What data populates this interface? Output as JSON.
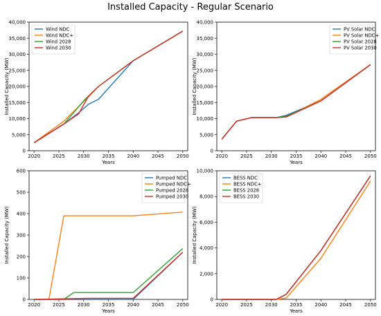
{
  "figure": {
    "title": "Installed Capacity - Regular Scenario"
  },
  "chart_data": [
    {
      "type": "line",
      "xlabel": "Years",
      "ylabel": "Installed Capacity (MW)",
      "xlim": [
        2019,
        2051
      ],
      "ylim": [
        0,
        40000
      ],
      "xticks": [
        2020,
        2025,
        2030,
        2035,
        2040,
        2045,
        2050
      ],
      "xtick_labels": [
        "2020",
        "2025",
        "2030",
        "2035",
        "2040",
        "2045",
        "2050"
      ],
      "yticks": [
        0,
        5000,
        10000,
        15000,
        20000,
        25000,
        30000,
        35000,
        40000
      ],
      "ytick_labels": [
        "0",
        "5,000",
        "10,000",
        "15,000",
        "20,000",
        "25,000",
        "30,000",
        "35,000",
        "40,000"
      ],
      "legend_position": "top-left",
      "series": [
        {
          "name": "Wind NDC",
          "color": "#1f77b4",
          "x": [
            2020,
            2026,
            2029,
            2031,
            2033,
            2040,
            2050
          ],
          "y": [
            2500,
            8300,
            11800,
            14500,
            16000,
            28000,
            37200
          ]
        },
        {
          "name": "Wind NDC+",
          "color": "#ff7f0e",
          "x": [
            2020,
            2026,
            2031,
            2033,
            2040,
            2050
          ],
          "y": [
            2500,
            9200,
            16800,
            20000,
            28000,
            37200
          ]
        },
        {
          "name": "Wind 2028",
          "color": "#2ca02c",
          "x": [
            2020,
            2026,
            2030,
            2031,
            2033,
            2040,
            2050
          ],
          "y": [
            2500,
            8300,
            15500,
            17000,
            20000,
            28000,
            37200
          ]
        },
        {
          "name": "Wind 2030",
          "color": "#d62728",
          "x": [
            2020,
            2026,
            2029,
            2031,
            2033,
            2040,
            2050
          ],
          "y": [
            2500,
            8300,
            11500,
            17000,
            20000,
            28000,
            37200
          ]
        }
      ]
    },
    {
      "type": "line",
      "xlabel": "Years",
      "ylabel": "Installed Capacity (MW)",
      "xlim": [
        2019,
        2051
      ],
      "ylim": [
        0,
        40000
      ],
      "xticks": [
        2020,
        2025,
        2030,
        2035,
        2040,
        2045,
        2050
      ],
      "xtick_labels": [
        "2020",
        "2025",
        "2030",
        "2035",
        "2040",
        "2045",
        "2050"
      ],
      "yticks": [
        0,
        5000,
        10000,
        15000,
        20000,
        25000,
        30000,
        35000,
        40000
      ],
      "ytick_labels": [
        "0",
        "5,000",
        "10,000",
        "15,000",
        "20,000",
        "25,000",
        "30,000",
        "35,000",
        "40,000"
      ],
      "legend_position": "top-right",
      "series": [
        {
          "name": "PV Solar NDC",
          "color": "#1f77b4",
          "x": [
            2020,
            2023,
            2026,
            2031,
            2033,
            2040,
            2050
          ],
          "y": [
            3600,
            9200,
            10300,
            10300,
            11000,
            15500,
            26800
          ]
        },
        {
          "name": "PV Solar NDC+",
          "color": "#ff7f0e",
          "x": [
            2020,
            2023,
            2026,
            2031,
            2033,
            2040,
            2050
          ],
          "y": [
            3600,
            9200,
            10300,
            10300,
            10500,
            16000,
            26800
          ]
        },
        {
          "name": "PV Solar 2028",
          "color": "#2ca02c",
          "x": [
            2020,
            2023,
            2026,
            2031,
            2033,
            2040,
            2050
          ],
          "y": [
            3600,
            9200,
            10300,
            10300,
            10700,
            15500,
            26800
          ]
        },
        {
          "name": "PV Solar 2030",
          "color": "#d62728",
          "x": [
            2020,
            2023,
            2026,
            2031,
            2033,
            2040,
            2050
          ],
          "y": [
            3600,
            9200,
            10300,
            10300,
            10500,
            15500,
            26800
          ]
        }
      ]
    },
    {
      "type": "line",
      "xlabel": "Years",
      "ylabel": "Installed Capacity (MW)",
      "xlim": [
        2019,
        2051
      ],
      "ylim": [
        0,
        600
      ],
      "xticks": [
        2020,
        2025,
        2030,
        2035,
        2040,
        2045,
        2050
      ],
      "xtick_labels": [
        "2020",
        "2025",
        "2030",
        "2035",
        "2040",
        "2045",
        "2050"
      ],
      "yticks": [
        0,
        100,
        200,
        300,
        400,
        500,
        600
      ],
      "ytick_labels": [
        "0",
        "100",
        "200",
        "300",
        "400",
        "500",
        "600"
      ],
      "legend_position": "top-right",
      "series": [
        {
          "name": "Pumped NDC",
          "color": "#1f77b4",
          "x": [
            2020,
            2031,
            2040,
            2050
          ],
          "y": [
            0,
            0,
            0,
            220
          ]
        },
        {
          "name": "Pumped NDC+",
          "color": "#ff7f0e",
          "x": [
            2020,
            2023,
            2026,
            2040,
            2050
          ],
          "y": [
            0,
            0,
            390,
            390,
            407
          ]
        },
        {
          "name": "Pumped 2028",
          "color": "#2ca02c",
          "x": [
            2020,
            2026,
            2028,
            2040,
            2050
          ],
          "y": [
            0,
            0,
            32,
            32,
            237
          ]
        },
        {
          "name": "Pumped 2030",
          "color": "#d62728",
          "x": [
            2020,
            2031,
            2040,
            2050
          ],
          "y": [
            0,
            5,
            5,
            220
          ]
        }
      ]
    },
    {
      "type": "line",
      "xlabel": "Years",
      "ylabel": "Installed Capacity (MW)",
      "xlim": [
        2019,
        2051
      ],
      "ylim": [
        0,
        10000
      ],
      "xticks": [
        2020,
        2025,
        2030,
        2035,
        2040,
        2045,
        2050
      ],
      "xtick_labels": [
        "2020",
        "2025",
        "2030",
        "2035",
        "2040",
        "2045",
        "2050"
      ],
      "yticks": [
        0,
        2000,
        4000,
        6000,
        8000,
        10000
      ],
      "ytick_labels": [
        "0",
        "2,000",
        "4,000",
        "6,000",
        "8,000",
        "10,000"
      ],
      "legend_position": "top-left",
      "series": [
        {
          "name": "BESS NDC",
          "color": "#1f77b4",
          "x": [
            2020,
            2031,
            2033,
            2040,
            2050
          ],
          "y": [
            0,
            0,
            400,
            3800,
            9600
          ]
        },
        {
          "name": "BESS NDC+",
          "color": "#ff7f0e",
          "x": [
            2020,
            2031,
            2033,
            2040,
            2050
          ],
          "y": [
            0,
            0,
            100,
            3200,
            9200
          ]
        },
        {
          "name": "BESS 2028",
          "color": "#2ca02c",
          "x": [
            2020,
            2031,
            2033,
            2040,
            2050
          ],
          "y": [
            0,
            0,
            400,
            3800,
            9600
          ]
        },
        {
          "name": "BESS 2030",
          "color": "#d62728",
          "x": [
            2020,
            2031,
            2033,
            2040,
            2050
          ],
          "y": [
            0,
            0,
            400,
            3800,
            9600
          ]
        }
      ]
    }
  ]
}
